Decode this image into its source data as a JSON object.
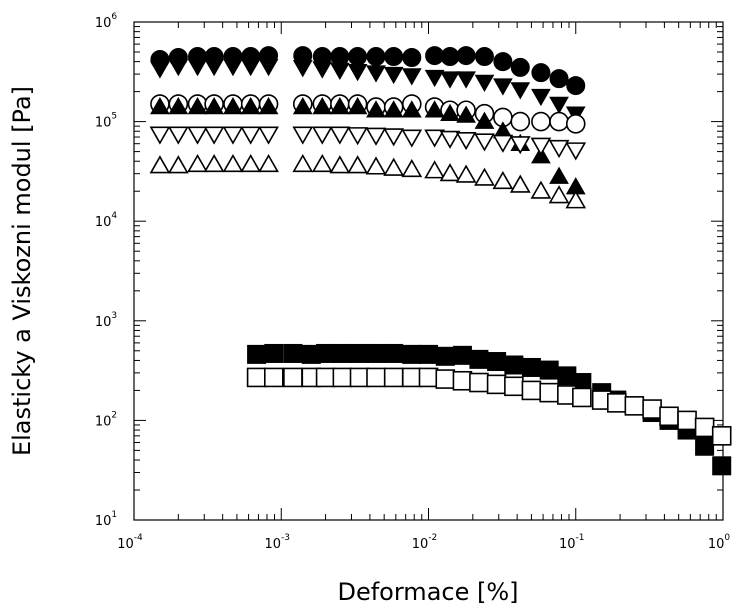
{
  "chart_data": {
    "type": "scatter",
    "title": "",
    "xlabel": "Deformace [%]",
    "ylabel": "Elasticky a Viskozni modul [Pa]",
    "xscale": "log",
    "yscale": "log",
    "xlim": [
      0.0001,
      1
    ],
    "ylim": [
      10,
      1000000
    ],
    "grid": false,
    "legend": "none",
    "x_ticks": [
      {
        "base": "10",
        "exp": "-4",
        "value": 0.0001
      },
      {
        "base": "10",
        "exp": "-3",
        "value": 0.001
      },
      {
        "base": "10",
        "exp": "-2",
        "value": 0.01
      },
      {
        "base": "10",
        "exp": "-1",
        "value": 0.1
      },
      {
        "base": "10",
        "exp": "0",
        "value": 1
      }
    ],
    "y_ticks": [
      {
        "base": "10",
        "exp": "1",
        "value": 10
      },
      {
        "base": "10",
        "exp": "2",
        "value": 100
      },
      {
        "base": "10",
        "exp": "3",
        "value": 1000
      },
      {
        "base": "10",
        "exp": "4",
        "value": 10000
      },
      {
        "base": "10",
        "exp": "5",
        "value": 100000
      },
      {
        "base": "10",
        "exp": "6",
        "value": 1000000
      }
    ],
    "series": [
      {
        "marker": "circle",
        "filled": true,
        "x": [
          0.00015,
          0.0002,
          0.00027,
          0.00035,
          0.00047,
          0.00062,
          0.00082,
          0.0014,
          0.0019,
          0.0025,
          0.0033,
          0.0044,
          0.0058,
          0.0077,
          0.011,
          0.014,
          0.018,
          0.024,
          0.032,
          0.042,
          0.058,
          0.077,
          0.1
        ],
        "y": [
          420000,
          440000,
          450000,
          450000,
          450000,
          450000,
          460000,
          460000,
          450000,
          450000,
          450000,
          450000,
          450000,
          440000,
          460000,
          450000,
          460000,
          450000,
          400000,
          350000,
          310000,
          270000,
          230000
        ]
      },
      {
        "marker": "triangle-down",
        "filled": true,
        "x": [
          0.00015,
          0.0002,
          0.00027,
          0.00035,
          0.00047,
          0.00062,
          0.00082,
          0.0014,
          0.0019,
          0.0025,
          0.0033,
          0.0044,
          0.0058,
          0.0077,
          0.011,
          0.014,
          0.018,
          0.024,
          0.032,
          0.042,
          0.058,
          0.077,
          0.1
        ],
        "y": [
          340000,
          360000,
          360000,
          360000,
          360000,
          360000,
          360000,
          350000,
          340000,
          330000,
          320000,
          310000,
          300000,
          290000,
          280000,
          270000,
          270000,
          250000,
          230000,
          210000,
          180000,
          150000,
          120000
        ]
      },
      {
        "marker": "circle",
        "filled": false,
        "x": [
          0.00015,
          0.0002,
          0.00027,
          0.00035,
          0.00047,
          0.00062,
          0.00082,
          0.0014,
          0.0019,
          0.0025,
          0.0033,
          0.0044,
          0.0058,
          0.0077,
          0.011,
          0.014,
          0.018,
          0.024,
          0.032,
          0.042,
          0.058,
          0.077,
          0.1
        ],
        "y": [
          150000,
          150000,
          150000,
          150000,
          150000,
          150000,
          150000,
          150000,
          150000,
          150000,
          150000,
          140000,
          140000,
          150000,
          140000,
          130000,
          130000,
          120000,
          110000,
          100000,
          100000,
          100000,
          95000
        ]
      },
      {
        "marker": "triangle-up",
        "filled": true,
        "x": [
          0.00015,
          0.0002,
          0.00027,
          0.00035,
          0.00047,
          0.00062,
          0.00082,
          0.0014,
          0.0019,
          0.0025,
          0.0033,
          0.0044,
          0.0058,
          0.0077,
          0.011,
          0.014,
          0.018,
          0.024,
          0.032,
          0.042,
          0.058,
          0.077,
          0.1
        ],
        "y": [
          140000,
          140000,
          140000,
          140000,
          140000,
          140000,
          140000,
          140000,
          140000,
          140000,
          140000,
          130000,
          130000,
          130000,
          130000,
          120000,
          115000,
          100000,
          80000,
          60000,
          45000,
          28000,
          22000
        ]
      },
      {
        "marker": "triangle-down",
        "filled": false,
        "x": [
          0.00015,
          0.0002,
          0.00027,
          0.00035,
          0.00047,
          0.00062,
          0.00082,
          0.0014,
          0.0019,
          0.0025,
          0.0033,
          0.0044,
          0.0058,
          0.0077,
          0.011,
          0.014,
          0.018,
          0.024,
          0.032,
          0.042,
          0.058,
          0.077,
          0.1
        ],
        "y": [
          75000,
          75000,
          75000,
          75000,
          75000,
          75000,
          75000,
          75000,
          75000,
          75000,
          74000,
          73000,
          72000,
          70000,
          70000,
          68000,
          66000,
          64000,
          62000,
          60000,
          58000,
          55000,
          52000
        ]
      },
      {
        "marker": "triangle-up",
        "filled": false,
        "x": [
          0.00015,
          0.0002,
          0.00027,
          0.00035,
          0.00047,
          0.00062,
          0.00082,
          0.0014,
          0.0019,
          0.0025,
          0.0033,
          0.0044,
          0.0058,
          0.0077,
          0.011,
          0.014,
          0.018,
          0.024,
          0.032,
          0.042,
          0.058,
          0.077,
          0.1
        ],
        "y": [
          36000,
          36000,
          37000,
          37000,
          37000,
          37000,
          37000,
          37000,
          37000,
          36000,
          36000,
          35000,
          34000,
          33000,
          32000,
          30000,
          29000,
          27000,
          25000,
          23000,
          20000,
          18000,
          16000
        ]
      },
      {
        "marker": "square",
        "filled": true,
        "x": [
          0.00068,
          0.00089,
          0.0012,
          0.0016,
          0.002,
          0.0026,
          0.0034,
          0.0044,
          0.0058,
          0.0077,
          0.01,
          0.013,
          0.017,
          0.022,
          0.029,
          0.038,
          0.05,
          0.066,
          0.087,
          0.11,
          0.15,
          0.19,
          0.25,
          0.33,
          0.43,
          0.57,
          0.75,
          0.98
        ],
        "y": [
          460,
          470,
          470,
          460,
          470,
          470,
          470,
          470,
          470,
          460,
          460,
          440,
          450,
          410,
          390,
          360,
          340,
          320,
          280,
          240,
          190,
          160,
          140,
          120,
          100,
          80,
          55,
          35
        ]
      },
      {
        "marker": "square",
        "filled": false,
        "x": [
          0.00068,
          0.00089,
          0.0012,
          0.0016,
          0.002,
          0.0026,
          0.0034,
          0.0044,
          0.0058,
          0.0077,
          0.01,
          0.013,
          0.017,
          0.022,
          0.029,
          0.038,
          0.05,
          0.066,
          0.087,
          0.11,
          0.15,
          0.19,
          0.25,
          0.33,
          0.43,
          0.57,
          0.75,
          0.98
        ],
        "y": [
          270,
          270,
          270,
          270,
          270,
          270,
          270,
          270,
          270,
          270,
          270,
          260,
          250,
          240,
          230,
          220,
          200,
          190,
          180,
          170,
          160,
          150,
          140,
          130,
          110,
          100,
          85,
          70
        ]
      }
    ]
  }
}
